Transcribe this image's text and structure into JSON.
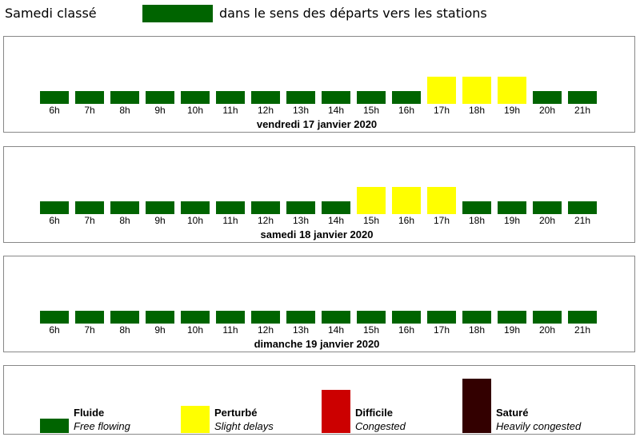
{
  "header": {
    "title": "Samedi classé",
    "swatch_color": "#006400",
    "description": "dans le sens des départs vers les stations"
  },
  "colors": {
    "fluide": "#006400",
    "perturbe": "#ffff00",
    "difficile": "#cc0000",
    "sature": "#330000"
  },
  "chart_data": {
    "type": "table",
    "hours": [
      "6h",
      "7h",
      "8h",
      "9h",
      "10h",
      "11h",
      "12h",
      "13h",
      "14h",
      "15h",
      "16h",
      "17h",
      "18h",
      "19h",
      "20h",
      "21h"
    ],
    "days": [
      {
        "date": "vendredi 17 janvier 2020",
        "levels": [
          "fluide",
          "fluide",
          "fluide",
          "fluide",
          "fluide",
          "fluide",
          "fluide",
          "fluide",
          "fluide",
          "fluide",
          "fluide",
          "perturbe",
          "perturbe",
          "perturbe",
          "fluide",
          "fluide"
        ]
      },
      {
        "date": "samedi 18 janvier 2020",
        "levels": [
          "fluide",
          "fluide",
          "fluide",
          "fluide",
          "fluide",
          "fluide",
          "fluide",
          "fluide",
          "fluide",
          "perturbe",
          "perturbe",
          "perturbe",
          "fluide",
          "fluide",
          "fluide",
          "fluide"
        ]
      },
      {
        "date": "dimanche 19 janvier 2020",
        "levels": [
          "fluide",
          "fluide",
          "fluide",
          "fluide",
          "fluide",
          "fluide",
          "fluide",
          "fluide",
          "fluide",
          "fluide",
          "fluide",
          "fluide",
          "fluide",
          "fluide",
          "fluide",
          "fluide"
        ]
      }
    ]
  },
  "legend": [
    {
      "key": "fluide",
      "name": "Fluide",
      "desc": "Free flowing"
    },
    {
      "key": "perturbe",
      "name": "Perturbé",
      "desc": "Slight delays"
    },
    {
      "key": "difficile",
      "name": "Difficile",
      "desc": "Congested"
    },
    {
      "key": "sature",
      "name": "Saturé",
      "desc": "Heavily congested"
    }
  ]
}
